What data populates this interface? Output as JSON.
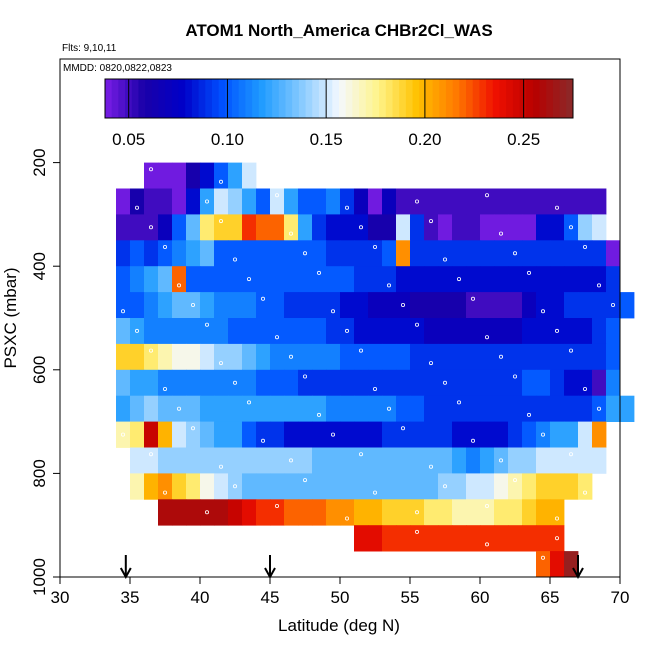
{
  "chart_data": {
    "type": "heatmap",
    "title": "ATOM1 North_America CHBr2Cl_WAS",
    "notes": [
      "Flts: 9,10,11",
      "MMDD: 0820,0822,0823"
    ],
    "xlabel": "Latitude (deg N)",
    "ylabel": "PSXC (mbar)",
    "xlim": [
      30,
      70
    ],
    "ylim": [
      1000,
      0
    ],
    "x_ticks": [
      30,
      35,
      40,
      45,
      50,
      55,
      60,
      65,
      70
    ],
    "y_ticks": [
      200,
      400,
      600,
      800,
      1000
    ],
    "colorbar": {
      "range": [
        0.038,
        0.275
      ],
      "ticks": [
        "0.05",
        "0.10",
        "0.15",
        "0.20",
        "0.25"
      ],
      "tick_values": [
        0.05,
        0.1,
        0.15,
        0.2,
        0.25
      ],
      "stops": [
        "#7a1ee6",
        "#1a00a8",
        "#0000c8",
        "#0050ff",
        "#1e9bff",
        "#82c8ff",
        "#f4f8ff",
        "#fff48a",
        "#ffc200",
        "#ff7a00",
        "#f01000",
        "#b80000",
        "#8a2a2a"
      ]
    },
    "flight_markers_lat": [
      34.7,
      45,
      67
    ],
    "cell_width_deg": 1,
    "rows": [
      {
        "p": 225,
        "lat0": 36,
        "values": [
          0.04,
          0.04,
          0.04,
          0.06,
          0.08,
          0.1,
          0.12,
          0.15
        ]
      },
      {
        "p": 275,
        "lat0": 34,
        "values": [
          0.04,
          0.06,
          0.05,
          0.05,
          0.04,
          0.08,
          0.12,
          0.15,
          0.14,
          0.12,
          0.1,
          0.15,
          0.12,
          0.1,
          0.1,
          0.11,
          0.09,
          0.07,
          0.04,
          0.07,
          0.05,
          0.05,
          0.05,
          0.05,
          0.05,
          0.05,
          0.05,
          0.05,
          0.05,
          0.05,
          0.05,
          0.05,
          0.05,
          0.05,
          0.05
        ]
      },
      {
        "p": 325,
        "lat0": 34,
        "values": [
          0.05,
          0.05,
          0.05,
          0.07,
          0.1,
          0.13,
          0.18,
          0.19,
          0.19,
          0.23,
          0.22,
          0.22,
          0.18,
          0.12,
          0.09,
          0.08,
          0.08,
          0.08,
          0.06,
          0.06,
          0.15,
          0.09,
          0.05,
          0.04,
          0.05,
          0.05,
          0.04,
          0.04,
          0.04,
          0.04,
          0.08,
          0.08,
          0.1,
          0.14,
          0.15
        ]
      },
      {
        "p": 375,
        "lat0": 34,
        "values": [
          0.09,
          0.1,
          0.09,
          0.1,
          0.11,
          0.12,
          0.13,
          0.1,
          0.1,
          0.1,
          0.1,
          0.1,
          0.1,
          0.1,
          0.1,
          0.09,
          0.09,
          0.09,
          0.09,
          0.1,
          0.21,
          0.09,
          0.09,
          0.09,
          0.09,
          0.09,
          0.09,
          0.09,
          0.09,
          0.09,
          0.09,
          0.09,
          0.09,
          0.09,
          0.09,
          0.04
        ]
      },
      {
        "p": 425,
        "lat0": 34,
        "values": [
          0.1,
          0.11,
          0.12,
          0.13,
          0.22,
          0.1,
          0.1,
          0.1,
          0.1,
          0.1,
          0.1,
          0.1,
          0.1,
          0.1,
          0.1,
          0.1,
          0.1,
          0.09,
          0.09,
          0.09,
          0.08,
          0.08,
          0.08,
          0.08,
          0.08,
          0.08,
          0.08,
          0.08,
          0.08,
          0.08,
          0.08,
          0.08,
          0.08,
          0.08,
          0.08,
          0.09
        ]
      },
      {
        "p": 475,
        "lat0": 34,
        "values": [
          0.1,
          0.1,
          0.11,
          0.12,
          0.13,
          0.13,
          0.12,
          0.11,
          0.11,
          0.11,
          0.1,
          0.1,
          0.09,
          0.09,
          0.09,
          0.09,
          0.08,
          0.08,
          0.07,
          0.07,
          0.07,
          0.06,
          0.06,
          0.06,
          0.06,
          0.05,
          0.05,
          0.05,
          0.05,
          0.07,
          0.08,
          0.08,
          0.09,
          0.09,
          0.09,
          0.09,
          0.1
        ]
      },
      {
        "p": 525,
        "lat0": 34,
        "values": [
          0.13,
          0.12,
          0.11,
          0.11,
          0.11,
          0.11,
          0.11,
          0.11,
          0.1,
          0.1,
          0.1,
          0.1,
          0.1,
          0.1,
          0.1,
          0.09,
          0.09,
          0.08,
          0.08,
          0.08,
          0.08,
          0.08,
          0.07,
          0.07,
          0.07,
          0.07,
          0.07,
          0.07,
          0.07,
          0.08,
          0.08,
          0.08,
          0.08,
          0.08,
          0.09,
          0.1
        ]
      },
      {
        "p": 575,
        "lat0": 34,
        "values": [
          0.19,
          0.19,
          0.18,
          0.17,
          0.16,
          0.16,
          0.15,
          0.14,
          0.14,
          0.13,
          0.12,
          0.11,
          0.11,
          0.11,
          0.11,
          0.11,
          0.1,
          0.1,
          0.1,
          0.1,
          0.1,
          0.09,
          0.09,
          0.09,
          0.09,
          0.09,
          0.09,
          0.09,
          0.09,
          0.09,
          0.09,
          0.09,
          0.09,
          0.09,
          0.09,
          0.1
        ]
      },
      {
        "p": 625,
        "lat0": 34,
        "values": [
          0.13,
          0.12,
          0.12,
          0.11,
          0.11,
          0.11,
          0.11,
          0.11,
          0.11,
          0.11,
          0.1,
          0.1,
          0.1,
          0.09,
          0.09,
          0.09,
          0.09,
          0.09,
          0.09,
          0.09,
          0.09,
          0.09,
          0.09,
          0.09,
          0.09,
          0.09,
          0.09,
          0.09,
          0.09,
          0.1,
          0.1,
          0.09,
          0.08,
          0.08,
          0.05,
          0.11
        ]
      },
      {
        "p": 675,
        "lat0": 34,
        "values": [
          0.12,
          0.13,
          0.14,
          0.13,
          0.13,
          0.13,
          0.12,
          0.12,
          0.12,
          0.12,
          0.12,
          0.12,
          0.12,
          0.12,
          0.12,
          0.11,
          0.11,
          0.11,
          0.11,
          0.11,
          0.1,
          0.1,
          0.09,
          0.09,
          0.09,
          0.09,
          0.09,
          0.09,
          0.09,
          0.09,
          0.09,
          0.09,
          0.09,
          0.09,
          0.1,
          0.12,
          0.12
        ]
      },
      {
        "p": 725,
        "lat0": 34,
        "values": [
          0.17,
          0.18,
          0.25,
          0.2,
          0.15,
          0.14,
          0.13,
          0.12,
          0.12,
          0.1,
          0.09,
          0.09,
          0.08,
          0.08,
          0.08,
          0.08,
          0.08,
          0.08,
          0.08,
          0.09,
          0.09,
          0.09,
          0.09,
          0.09,
          0.08,
          0.08,
          0.08,
          0.08,
          0.09,
          0.1,
          0.11,
          0.12,
          0.12,
          0.15,
          0.21
        ]
      },
      {
        "p": 775,
        "lat0": 35,
        "values": [
          0.15,
          0.15,
          0.14,
          0.14,
          0.14,
          0.14,
          0.14,
          0.14,
          0.14,
          0.14,
          0.14,
          0.14,
          0.14,
          0.13,
          0.13,
          0.13,
          0.13,
          0.13,
          0.13,
          0.13,
          0.13,
          0.13,
          0.13,
          0.12,
          0.11,
          0.12,
          0.13,
          0.14,
          0.14,
          0.15,
          0.15,
          0.15,
          0.15,
          0.15
        ]
      },
      {
        "p": 825,
        "lat0": 35,
        "values": [
          0.17,
          0.2,
          0.21,
          0.19,
          0.18,
          0.16,
          0.15,
          0.14,
          0.13,
          0.13,
          0.13,
          0.13,
          0.13,
          0.13,
          0.13,
          0.13,
          0.13,
          0.13,
          0.13,
          0.13,
          0.13,
          0.13,
          0.14,
          0.14,
          0.15,
          0.15,
          0.16,
          0.17,
          0.18,
          0.19,
          0.19,
          0.19,
          0.18
        ]
      },
      {
        "p": 875,
        "lat0": 37,
        "values": [
          0.26,
          0.26,
          0.26,
          0.26,
          0.26,
          0.25,
          0.24,
          0.23,
          0.23,
          0.22,
          0.22,
          0.22,
          0.21,
          0.21,
          0.2,
          0.2,
          0.19,
          0.19,
          0.19,
          0.18,
          0.18,
          0.17,
          0.17,
          0.17,
          0.18,
          0.18,
          0.19,
          0.2,
          0.2
        ]
      },
      {
        "p": 925,
        "lat0": 51,
        "values": [
          0.24,
          0.24,
          0.23,
          0.23,
          0.23,
          0.23,
          0.23,
          0.23,
          0.23,
          0.23,
          0.23,
          0.23,
          0.23,
          0.23,
          0.23
        ]
      },
      {
        "p": 975,
        "lat0": 64,
        "values": [
          0.22,
          0.24,
          0.27
        ]
      }
    ]
  }
}
